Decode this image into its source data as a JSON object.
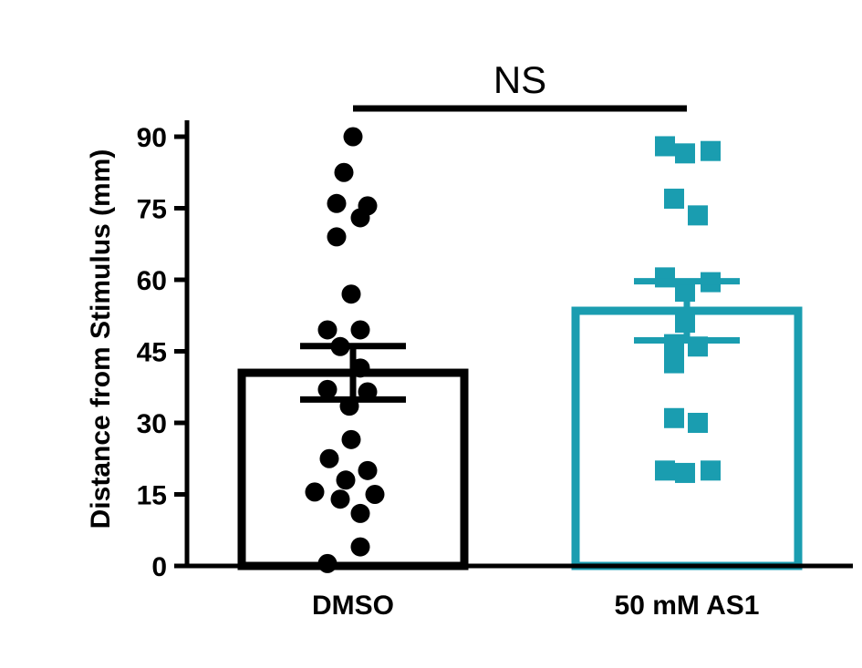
{
  "chart_data": {
    "type": "bar",
    "title": "",
    "xlabel": "",
    "ylabel": "Distance from Stimulus (mm)",
    "ylim": [
      0,
      90
    ],
    "yticks": [
      0,
      15,
      30,
      45,
      60,
      75,
      90
    ],
    "categories": [
      "DMSO",
      "50 mM AS1"
    ],
    "colors": [
      "#000000",
      "#1a9db0"
    ],
    "series": [
      {
        "category": "DMSO",
        "mean": 40.5,
        "error": 5.6,
        "marker": "circle",
        "points": [
          {
            "x": 0.0,
            "y": 90
          },
          {
            "x": -0.05,
            "y": 82.5
          },
          {
            "x": -0.09,
            "y": 76
          },
          {
            "x": 0.08,
            "y": 75.5
          },
          {
            "x": 0.04,
            "y": 73
          },
          {
            "x": -0.09,
            "y": 69
          },
          {
            "x": -0.01,
            "y": 57
          },
          {
            "x": -0.14,
            "y": 49.5
          },
          {
            "x": 0.04,
            "y": 49.5
          },
          {
            "x": -0.07,
            "y": 46
          },
          {
            "x": 0.04,
            "y": 41.5
          },
          {
            "x": -0.14,
            "y": 37
          },
          {
            "x": 0.08,
            "y": 36.5
          },
          {
            "x": -0.02,
            "y": 33.5
          },
          {
            "x": -0.01,
            "y": 26.5
          },
          {
            "x": -0.13,
            "y": 22.5
          },
          {
            "x": 0.08,
            "y": 20
          },
          {
            "x": -0.04,
            "y": 18
          },
          {
            "x": -0.21,
            "y": 15.5
          },
          {
            "x": 0.12,
            "y": 15
          },
          {
            "x": -0.07,
            "y": 14
          },
          {
            "x": 0.04,
            "y": 11
          },
          {
            "x": 0.04,
            "y": 4
          },
          {
            "x": -0.14,
            "y": 0.5
          }
        ]
      },
      {
        "category": "50 mM AS1",
        "mean": 53.5,
        "error": 6.2,
        "marker": "square",
        "points": [
          {
            "x": -0.12,
            "y": 88
          },
          {
            "x": -0.01,
            "y": 86.5
          },
          {
            "x": 0.13,
            "y": 87
          },
          {
            "x": -0.07,
            "y": 77
          },
          {
            "x": 0.06,
            "y": 73.5
          },
          {
            "x": -0.12,
            "y": 60.5
          },
          {
            "x": 0.13,
            "y": 59.5
          },
          {
            "x": -0.01,
            "y": 57.5
          },
          {
            "x": -0.01,
            "y": 51
          },
          {
            "x": -0.07,
            "y": 46.5
          },
          {
            "x": 0.06,
            "y": 46
          },
          {
            "x": -0.07,
            "y": 42.5
          },
          {
            "x": -0.07,
            "y": 31
          },
          {
            "x": 0.06,
            "y": 30
          },
          {
            "x": -0.12,
            "y": 20
          },
          {
            "x": 0.13,
            "y": 20
          },
          {
            "x": -0.01,
            "y": 19.5
          }
        ]
      }
    ],
    "annotations": [
      {
        "text": "NS",
        "between": [
          "DMSO",
          "50 mM AS1"
        ]
      }
    ]
  }
}
